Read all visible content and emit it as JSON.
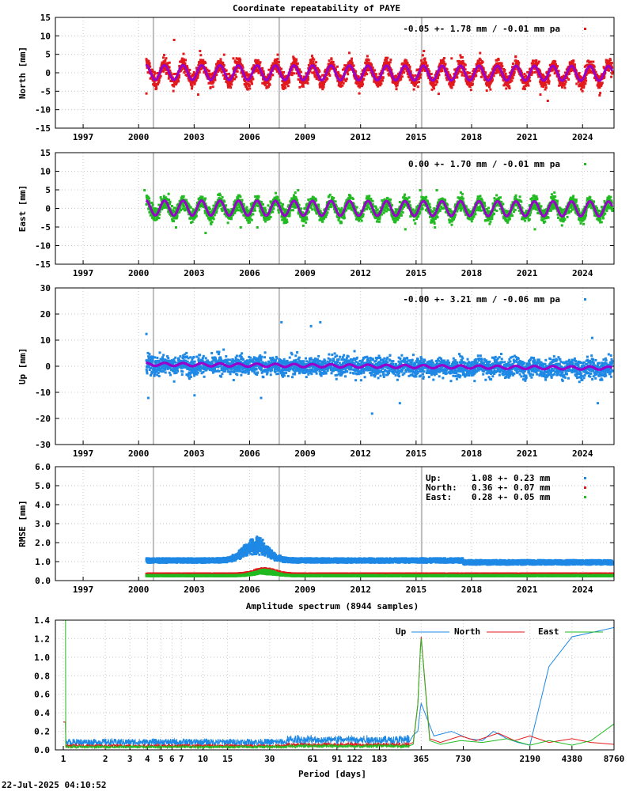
{
  "footer": {
    "timestamp": "22-Jul-2025 04:10:52"
  },
  "chart_data": [
    {
      "id": "north",
      "type": "scatter",
      "title": "Coordinate repeatability of PAYE",
      "ylabel": "North [mm]",
      "xlabel": "",
      "xlim": [
        1995.5,
        2025.7
      ],
      "ylim": [
        -15,
        15
      ],
      "yticks": [
        -15,
        -10,
        -5,
        0,
        5,
        10,
        15
      ],
      "xticks": [
        1997,
        2000,
        2003,
        2006,
        2009,
        2012,
        2015,
        2018,
        2021,
        2024
      ],
      "grid": true,
      "legend": {
        "text": "-0.05 +- 1.78 mm / -0.01 mm pa",
        "color": "#e31a1c",
        "placement": "top-right"
      },
      "series": [
        {
          "name": "North",
          "color": "#e31a1c",
          "model": {
            "start": 2000.4,
            "end": 2025.6,
            "offset": -0.05,
            "trend": -0.01,
            "annual_amplitude": 2.4,
            "scatter_sigma": 1.78,
            "points_per_year": 365
          }
        },
        {
          "name": "fit",
          "color": "#9900cc",
          "model": {
            "annual_amplitude": 2.0
          }
        }
      ],
      "gaps": [
        2000.8,
        2007.6,
        2015.3
      ],
      "outliers": [
        [
          2001.9,
          9
        ],
        [
          2003.3,
          6
        ],
        [
          2004.6,
          5
        ],
        [
          2005.1,
          4
        ],
        [
          2007.5,
          5
        ],
        [
          2010.4,
          4
        ],
        [
          2015.4,
          6
        ],
        [
          2016.9,
          4
        ],
        [
          2000.4,
          -5.5
        ],
        [
          2003.2,
          -5.8
        ],
        [
          2016.2,
          -5.6
        ],
        [
          2021.7,
          -5.8
        ],
        [
          2022.1,
          -7.5
        ],
        [
          2024.9,
          -6
        ]
      ]
    },
    {
      "id": "east",
      "type": "scatter",
      "title": "",
      "ylabel": "East [mm]",
      "xlabel": "",
      "xlim": [
        1995.5,
        2025.7
      ],
      "ylim": [
        -15,
        15
      ],
      "yticks": [
        -15,
        -10,
        -5,
        0,
        5,
        10,
        15
      ],
      "xticks": [
        1997,
        2000,
        2003,
        2006,
        2009,
        2012,
        2015,
        2018,
        2021,
        2024
      ],
      "grid": true,
      "legend": {
        "text": "0.00 +- 1.70 mm / -0.01 mm pa",
        "color": "#22bb22",
        "placement": "top-right"
      },
      "series": [
        {
          "name": "East",
          "color": "#22bb22",
          "model": {
            "start": 2000.4,
            "end": 2025.6,
            "offset": 0.0,
            "trend": -0.01,
            "annual_amplitude": 2.0,
            "scatter_sigma": 1.7,
            "points_per_year": 365
          }
        },
        {
          "name": "fit",
          "color": "#9900cc",
          "model": {
            "annual_amplitude": 2.0
          }
        }
      ],
      "gaps": [
        2000.8,
        2007.6,
        2015.3
      ],
      "outliers": [
        [
          2000.3,
          5
        ],
        [
          2001.6,
          4
        ],
        [
          2008.6,
          5
        ],
        [
          2015.2,
          5
        ],
        [
          2016.1,
          5
        ],
        [
          2002.0,
          -5
        ],
        [
          2003.6,
          -6.5
        ],
        [
          2005.5,
          -5
        ],
        [
          2006.4,
          -5
        ],
        [
          2014.4,
          -5.5
        ],
        [
          2016.0,
          -5
        ],
        [
          2021.4,
          -5.5
        ]
      ]
    },
    {
      "id": "up",
      "type": "scatter",
      "title": "",
      "ylabel": "Up [mm]",
      "xlabel": "",
      "xlim": [
        1995.5,
        2025.7
      ],
      "ylim": [
        -30,
        30
      ],
      "yticks": [
        -30,
        -20,
        -10,
        0,
        10,
        20,
        30
      ],
      "xticks": [
        1997,
        2000,
        2003,
        2006,
        2009,
        2012,
        2015,
        2018,
        2021,
        2024
      ],
      "grid": true,
      "legend": {
        "text": "-0.00 +- 3.21 mm / -0.06 mm pa",
        "color": "#1e88e5",
        "placement": "top-right"
      },
      "series": [
        {
          "name": "Up",
          "color": "#1e88e5",
          "model": {
            "start": 2000.4,
            "end": 2025.6,
            "offset": 0.0,
            "trend": -0.06,
            "annual_amplitude": 0.6,
            "scatter_sigma": 3.21,
            "points_per_year": 365
          }
        },
        {
          "name": "fit",
          "color": "#9900cc",
          "model": {
            "annual_amplitude": 0.6
          }
        }
      ],
      "gaps": [
        2000.8,
        2007.6,
        2015.3
      ],
      "outliers": [
        [
          2000.4,
          12.5
        ],
        [
          2007.7,
          17
        ],
        [
          2009.3,
          15.5
        ],
        [
          2009.8,
          17
        ],
        [
          2024.5,
          11
        ],
        [
          2000.5,
          -12
        ],
        [
          2003.0,
          -11
        ],
        [
          2006.6,
          -12
        ],
        [
          2012.6,
          -18
        ],
        [
          2014.1,
          -14
        ],
        [
          2024.8,
          -14
        ]
      ]
    },
    {
      "id": "rmse",
      "type": "scatter",
      "title": "",
      "ylabel": "RMSE [mm]",
      "xlabel": "",
      "xlim": [
        1995.5,
        2025.7
      ],
      "ylim": [
        0,
        6
      ],
      "yticks": [
        0.0,
        1.0,
        2.0,
        3.0,
        4.0,
        5.0,
        6.0
      ],
      "ytick_labels": [
        "0.0",
        "1.0",
        "2.0",
        "3.0",
        "4.0",
        "5.0",
        "6.0"
      ],
      "xticks": [
        1997,
        2000,
        2003,
        2006,
        2009,
        2012,
        2015,
        2018,
        2021,
        2024
      ],
      "grid": true,
      "gaps": [
        2000.8,
        2007.6,
        2015.3
      ],
      "legend_rows": [
        {
          "name": "Up:",
          "text": "1.08 +- 0.23 mm",
          "color": "#1e88e5"
        },
        {
          "name": "North:",
          "text": "0.36 +- 0.07 mm",
          "color": "#e31a1c"
        },
        {
          "name": "East:",
          "text": "0.28 +- 0.05 mm",
          "color": "#22bb22"
        }
      ],
      "series": [
        {
          "name": "Up",
          "color": "#1e88e5",
          "mean": 1.08,
          "sigma": 0.23,
          "bump": {
            "center": 2006.3,
            "height": 0.8,
            "width": 0.9
          }
        },
        {
          "name": "North",
          "color": "#e31a1c",
          "mean": 0.36,
          "sigma": 0.07,
          "bump": {
            "center": 2006.8,
            "height": 0.2,
            "width": 0.8
          }
        },
        {
          "name": "East",
          "color": "#22bb22",
          "mean": 0.28,
          "sigma": 0.05,
          "bump": {
            "center": 2006.8,
            "height": 0.2,
            "width": 0.8
          }
        }
      ]
    },
    {
      "id": "spectrum",
      "type": "line",
      "title": "Amplitude spectrum (8944 samples)",
      "xlabel": "Period [days]",
      "ylabel": "",
      "xscale": "log",
      "xlim": [
        1,
        8760
      ],
      "ylim": [
        0,
        1.4
      ],
      "yticks": [
        0.0,
        0.2,
        0.4,
        0.6,
        0.8,
        1.0,
        1.2,
        1.4
      ],
      "ytick_labels": [
        "0.0",
        "0.2",
        "0.4",
        "0.6",
        "0.8",
        "1.0",
        "1.2",
        "1.4"
      ],
      "xticks": [
        1,
        2,
        3,
        4,
        5,
        6,
        7,
        10,
        15,
        30,
        61,
        91,
        122,
        183,
        365,
        730,
        2190,
        4380,
        8760
      ],
      "grid": true,
      "legend": [
        {
          "name": "Up",
          "color": "#1e88e5"
        },
        {
          "name": "North",
          "color": "#e31a1c"
        },
        {
          "name": "East",
          "color": "#22bb22"
        }
      ],
      "series": [
        {
          "name": "Up",
          "color": "#1e88e5",
          "noise_level": 0.08,
          "peak_365": 0.5,
          "tail": [
            [
              365,
              0.5
            ],
            [
              450,
              0.15
            ],
            [
              600,
              0.2
            ],
            [
              800,
              0.12
            ],
            [
              1000,
              0.1
            ],
            [
              1200,
              0.2
            ],
            [
              1500,
              0.12
            ],
            [
              1800,
              0.08
            ],
            [
              2190,
              0.05
            ],
            [
              3000,
              0.9
            ],
            [
              4380,
              1.22
            ],
            [
              8760,
              1.32
            ]
          ]
        },
        {
          "name": "North",
          "color": "#e31a1c",
          "noise_level": 0.04,
          "peak_365": 1.22,
          "tail": [
            [
              365,
              1.22
            ],
            [
              420,
              0.12
            ],
            [
              500,
              0.08
            ],
            [
              700,
              0.15
            ],
            [
              900,
              0.1
            ],
            [
              1300,
              0.18
            ],
            [
              1700,
              0.1
            ],
            [
              2190,
              0.15
            ],
            [
              3000,
              0.08
            ],
            [
              4380,
              0.12
            ],
            [
              6000,
              0.08
            ],
            [
              8760,
              0.06
            ]
          ]
        },
        {
          "name": "East",
          "color": "#22bb22",
          "noise_level": 0.03,
          "peak_365": 1.2,
          "tail": [
            [
              365,
              1.2
            ],
            [
              420,
              0.1
            ],
            [
              500,
              0.06
            ],
            [
              700,
              0.1
            ],
            [
              1000,
              0.08
            ],
            [
              1500,
              0.12
            ],
            [
              2190,
              0.05
            ],
            [
              3000,
              0.1
            ],
            [
              4380,
              0.05
            ],
            [
              6000,
              0.1
            ],
            [
              8760,
              0.28
            ]
          ]
        }
      ]
    }
  ]
}
